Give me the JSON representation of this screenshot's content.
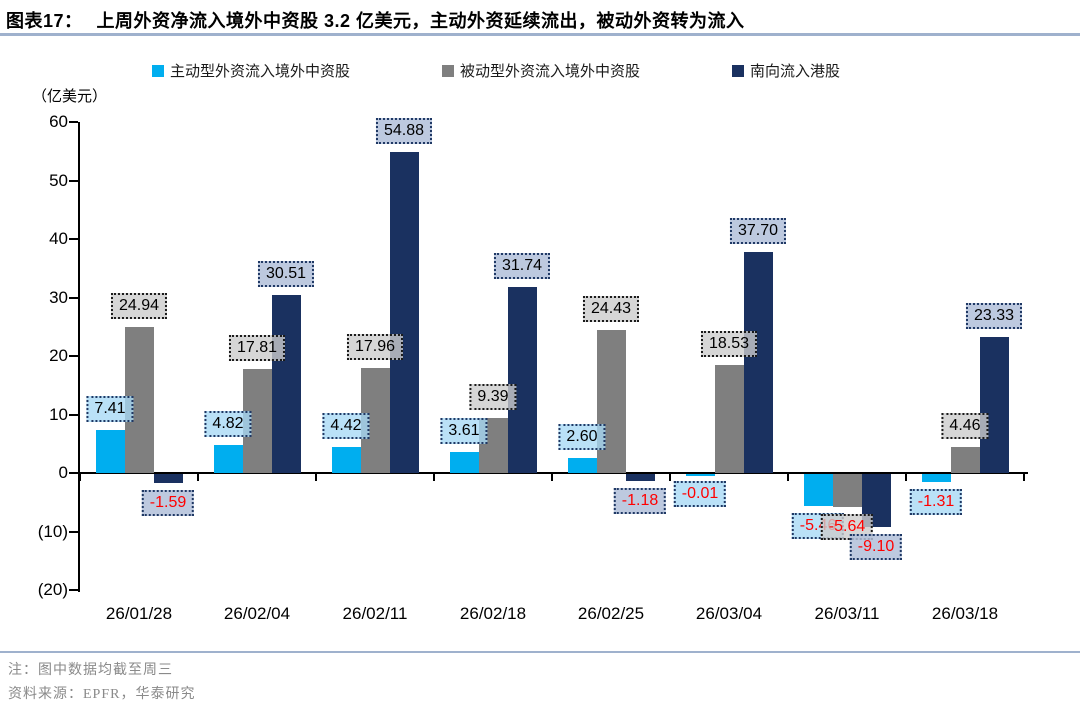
{
  "header": {
    "figure_label": "图表17：",
    "title": "上周外资净流入境外中资股 3.2 亿美元，主动外资延续流出，被动外资转为流入"
  },
  "footer": {
    "note": "注：图中数据均截至周三",
    "source": "资料来源：EPFR，华泰研究"
  },
  "chart_data": {
    "type": "bar",
    "unit_label": "（亿美元）",
    "categories": [
      "26/01/28",
      "26/02/04",
      "26/02/11",
      "26/02/18",
      "26/02/25",
      "26/03/04",
      "26/03/11",
      "26/03/18"
    ],
    "series": [
      {
        "name": "主动型外资流入境外中资股",
        "color": "#00AEEF",
        "label_bg": "rgba(167,217,245,0.78)",
        "label_border": "#1F3864",
        "values": [
          7.41,
          4.82,
          4.42,
          3.61,
          2.6,
          -0.01,
          -5.46,
          -1.31
        ]
      },
      {
        "name": "被动型外资流入境外中资股",
        "color": "#7F7F7F",
        "label_bg": "rgba(204,204,204,0.80)",
        "label_border": "#1A1A1A",
        "values": [
          24.94,
          17.81,
          17.96,
          9.39,
          24.43,
          18.53,
          -5.64,
          4.46
        ]
      },
      {
        "name": "南向流入港股",
        "color": "#1A3160",
        "label_bg": "rgba(178,192,217,0.85)",
        "label_border": "#1F3864",
        "values": [
          -1.59,
          30.51,
          54.88,
          31.74,
          -1.18,
          37.7,
          -9.1,
          23.33
        ]
      }
    ],
    "ylim": [
      -20,
      60
    ],
    "ytick_values": [
      60,
      50,
      40,
      30,
      20,
      10,
      0,
      -10,
      -20
    ],
    "ytick_labels": [
      "60",
      "50",
      "40",
      "30",
      "20",
      "10",
      "0",
      "(10)",
      "(20)"
    ],
    "negative_value_color": "#FF0000",
    "grid": false,
    "legend_position": "top"
  }
}
